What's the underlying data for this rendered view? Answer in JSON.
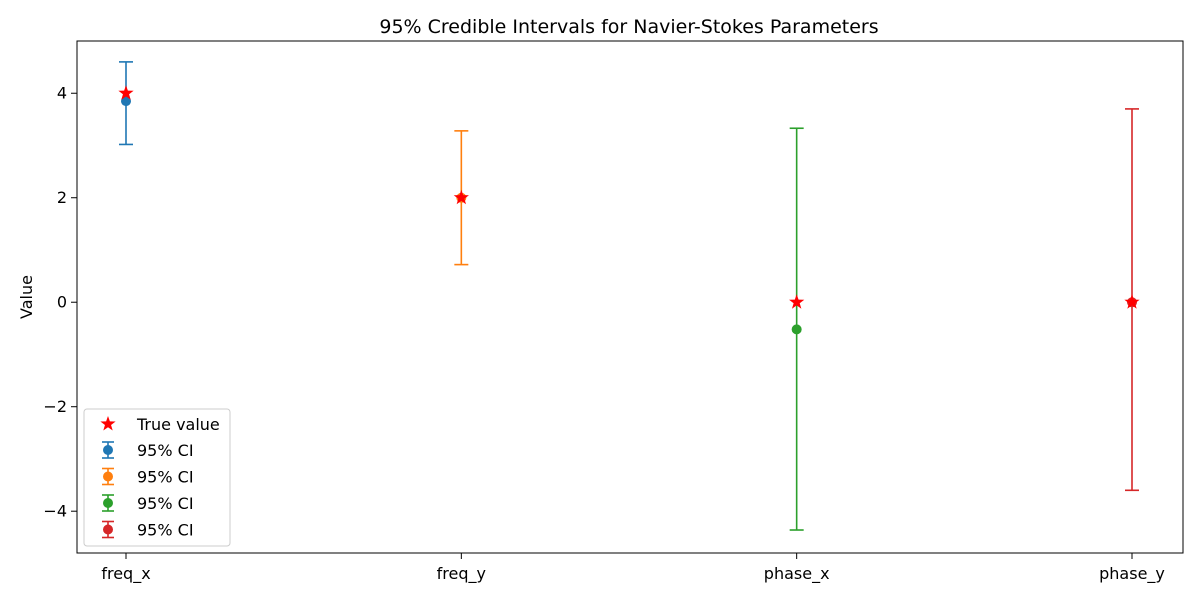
{
  "chart_data": {
    "type": "errorbar",
    "title": "95% Credible Intervals for Navier-Stokes Parameters",
    "xlabel": "",
    "ylabel": "Value",
    "categories": [
      "freq_x",
      "freq_y",
      "phase_x",
      "phase_y"
    ],
    "ylim": [
      -4.8,
      5.0
    ],
    "yticks": [
      -4,
      -2,
      0,
      2,
      4
    ],
    "ytick_labels": [
      "−4",
      "−2",
      "0",
      "2",
      "4"
    ],
    "grid": false,
    "legend_position": "lower-left",
    "series": [
      {
        "name": "95% CI",
        "category": "freq_x",
        "estimate": 3.85,
        "lower": 3.02,
        "upper": 4.6,
        "color": "#1f77b4"
      },
      {
        "name": "95% CI",
        "category": "freq_y",
        "estimate": 2.0,
        "lower": 0.72,
        "upper": 3.28,
        "color": "#ff7f0e"
      },
      {
        "name": "95% CI",
        "category": "phase_x",
        "estimate": -0.52,
        "lower": -4.36,
        "upper": 3.33,
        "color": "#2ca02c"
      },
      {
        "name": "95% CI",
        "category": "phase_y",
        "estimate": 0.0,
        "lower": -3.6,
        "upper": 3.7,
        "color": "#d62728"
      }
    ],
    "true_values": {
      "name": "True value",
      "color": "#ff0000",
      "values": [
        4.0,
        2.0,
        0.0,
        0.0
      ]
    }
  }
}
